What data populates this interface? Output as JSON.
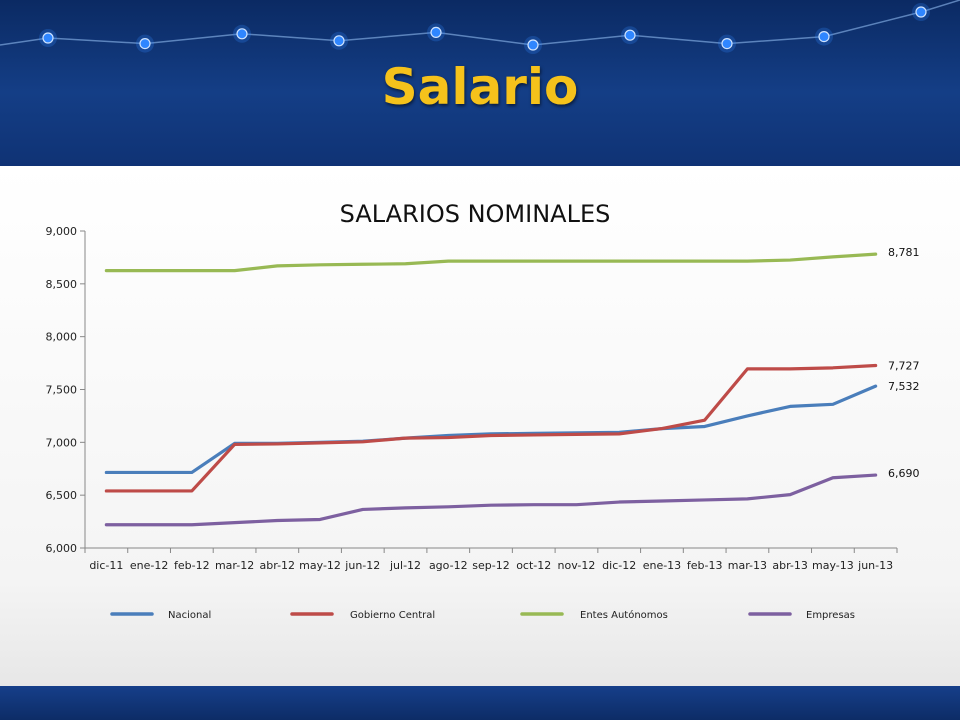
{
  "slide": {
    "title": "Salario"
  },
  "colors": {
    "title_gold": "#f5c21b",
    "header_blue": "#0f3274"
  },
  "decoration": {
    "node_values": [
      0,
      -0.4,
      0.3,
      -0.2,
      0.4,
      -0.5,
      0.2,
      -0.4,
      0.1,
      1
    ],
    "node_color": "#2f86ff"
  },
  "chart_data": {
    "type": "line",
    "title": "SALARIOS NOMINALES",
    "x": [
      "dic-11",
      "ene-12",
      "feb-12",
      "mar-12",
      "abr-12",
      "may-12",
      "jun-12",
      "jul-12",
      "ago-12",
      "sep-12",
      "oct-12",
      "nov-12",
      "dic-12",
      "ene-13",
      "feb-13",
      "mar-13",
      "abr-13",
      "may-13",
      "jun-13"
    ],
    "ylim": [
      6000,
      9000
    ],
    "yticks": [
      6000,
      6500,
      7000,
      7500,
      8000,
      8500,
      9000
    ],
    "ytick_labels": [
      "6,000",
      "6,500",
      "7,000",
      "7,500",
      "8,000",
      "8,500",
      "9,000"
    ],
    "grid": false,
    "legend_position": "bottom",
    "series": [
      {
        "name": "Nacional",
        "color": "#4a7ebb",
        "values": [
          6715,
          6715,
          6715,
          6990,
          6990,
          7000,
          7010,
          7040,
          7065,
          7080,
          7085,
          7090,
          7095,
          7130,
          7150,
          7250,
          7340,
          7360,
          7532
        ],
        "end_label": "7,532"
      },
      {
        "name": "Gobierno Central",
        "color": "#be4b48",
        "values": [
          6540,
          6540,
          6540,
          6980,
          6985,
          6995,
          7005,
          7040,
          7045,
          7065,
          7070,
          7075,
          7080,
          7130,
          7210,
          7695,
          7695,
          7705,
          7727
        ],
        "end_label": "7,727"
      },
      {
        "name": "Entes Autónomos",
        "color": "#98b954",
        "values": [
          8625,
          8625,
          8625,
          8625,
          8670,
          8680,
          8685,
          8690,
          8715,
          8715,
          8715,
          8715,
          8715,
          8715,
          8715,
          8715,
          8725,
          8755,
          8781
        ],
        "end_label": "8,781"
      },
      {
        "name": "Empresas",
        "color": "#7d60a0",
        "values": [
          6220,
          6220,
          6220,
          6240,
          6260,
          6270,
          6365,
          6380,
          6390,
          6405,
          6410,
          6410,
          6435,
          6445,
          6455,
          6465,
          6505,
          6665,
          6690
        ],
        "end_label": "6,690"
      }
    ]
  }
}
